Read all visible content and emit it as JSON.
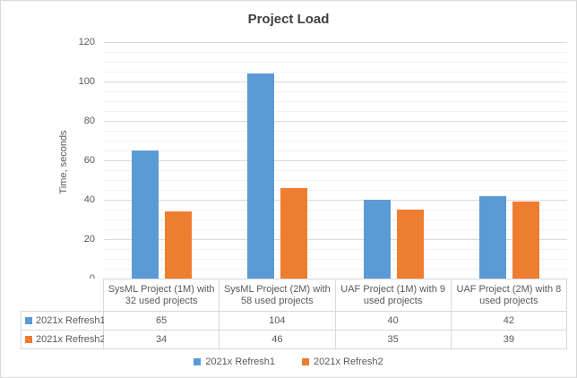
{
  "title": "Project Load",
  "y_axis": {
    "label": "Time, seconds",
    "ticks": [
      0,
      20,
      40,
      60,
      80,
      100,
      120
    ],
    "major_step": 20,
    "minor_step": 5
  },
  "chart_data": {
    "type": "bar",
    "title": "Project Load",
    "xlabel": "",
    "ylabel": "Time, seconds",
    "ylim": [
      0,
      120
    ],
    "grid": true,
    "legend_position": "bottom",
    "categories": [
      "SysML Project (1M) with 32 used projects",
      "SysML Project (2M) with 58 used projects",
      "UAF Project (1M) with 9 used projects",
      "UAF Project (2M) with 8 used projects"
    ],
    "series": [
      {
        "name": "2021x Refresh1",
        "color": "#5B9BD5",
        "values": [
          65,
          104,
          40,
          42
        ]
      },
      {
        "name": "2021x Refresh2",
        "color": "#ED7D31",
        "values": [
          34,
          46,
          35,
          39
        ]
      }
    ],
    "data_table_shown": true
  },
  "colors": {
    "series1": "#5B9BD5",
    "series2": "#ED7D31",
    "major_gridline": "#D9D9D9",
    "minor_gridline": "#F2F2F2",
    "table_border": "#D9D9D9",
    "title_text": "#404040",
    "axis_text": "#595959",
    "chart_border": "#D9D9D9",
    "background": "#FFFFFF"
  }
}
